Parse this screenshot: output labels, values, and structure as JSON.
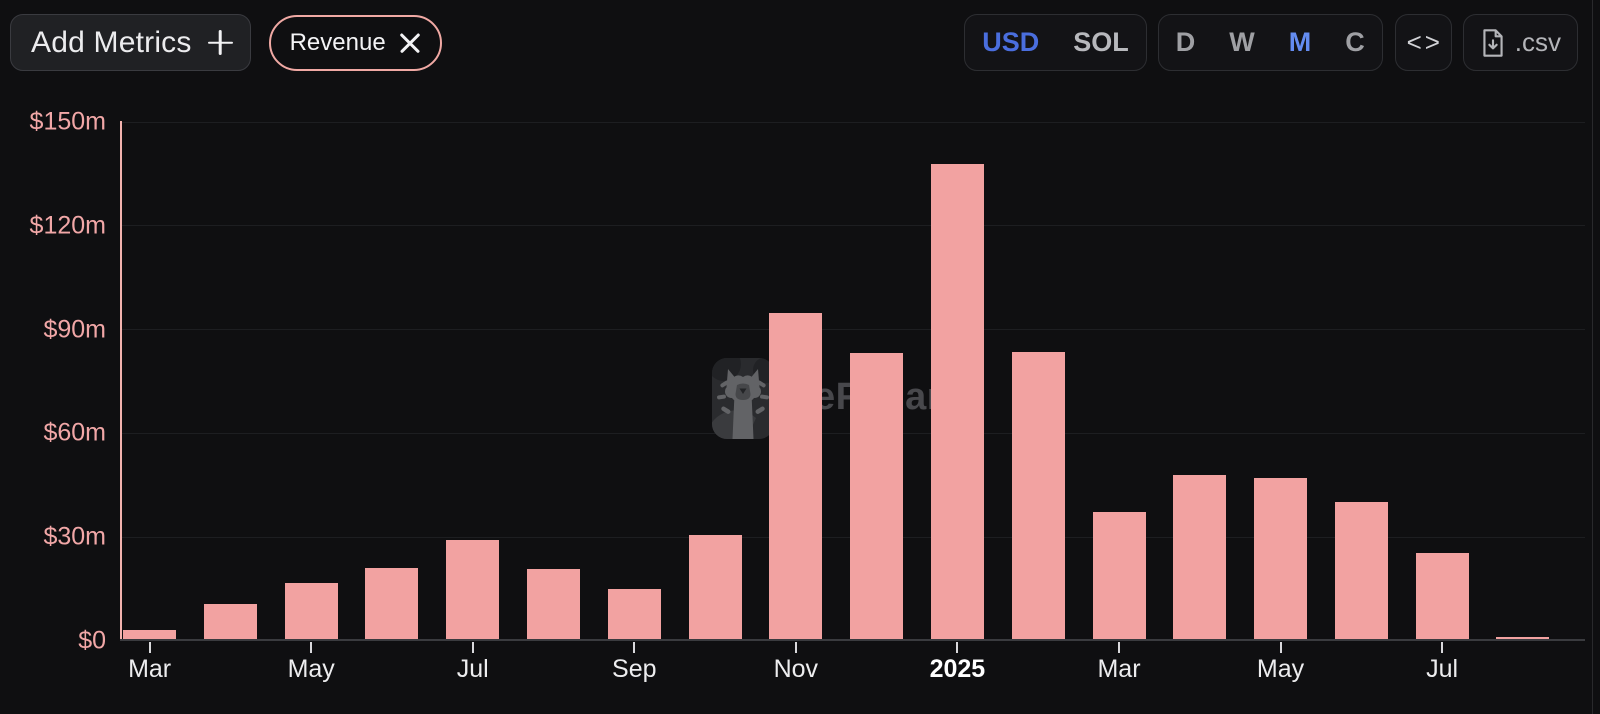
{
  "toolbar": {
    "add_metrics": {
      "label": "Add Metrics",
      "icon": "plus-icon"
    },
    "metric_pill": {
      "label": "Revenue",
      "icon": "close-icon",
      "border_color": "#f0a9a4"
    },
    "currency_toggle": {
      "options": [
        "USD",
        "SOL"
      ],
      "selected": "USD"
    },
    "interval_toggle": {
      "options": [
        "D",
        "W",
        "M",
        "C"
      ],
      "selected": "M"
    },
    "embed_button": {
      "icon": "code-icon",
      "glyph": "<>"
    },
    "csv_button": {
      "label": ".csv",
      "icon": "download-file-icon"
    }
  },
  "watermark": {
    "text": "DeFiLlama",
    "icon": "defillama-llama-logo"
  },
  "colors": {
    "background": "#101012",
    "bar": "#f2a2a1",
    "axis_label_pink": "#f1a7a7",
    "accent_blue_currency": "#4a6ede",
    "accent_blue_interval": "#648cf0"
  },
  "chart_data": {
    "type": "bar",
    "title": "Revenue",
    "xlabel": "",
    "ylabel": "USD (millions)",
    "unit": "$m",
    "ylim": [
      0,
      150
    ],
    "grid": true,
    "legend_position": "none",
    "x": [
      "Mar 2024",
      "Apr 2024",
      "May 2024",
      "Jun 2024",
      "Jul 2024",
      "Aug 2024",
      "Sep 2024",
      "Oct 2024",
      "Nov 2024",
      "Dec 2024",
      "Jan 2025",
      "Feb 2025",
      "Mar 2025",
      "Apr 2025",
      "May 2025",
      "Jun 2025",
      "Jul 2025",
      "Aug 2025"
    ],
    "values": [
      3,
      10.4,
      16.5,
      20.8,
      28.9,
      20.5,
      14.7,
      30.4,
      94.5,
      83,
      137.5,
      83.3,
      37,
      47.7,
      46.8,
      39.9,
      25.2,
      0.9
    ],
    "yticks": {
      "values": [
        0,
        30,
        60,
        90,
        120,
        150
      ],
      "labels": [
        "$0",
        "$30m",
        "$60m",
        "$90m",
        "$120m",
        "$150m"
      ]
    },
    "xticks": [
      {
        "index": 0,
        "label": "Mar",
        "bold": false
      },
      {
        "index": 2,
        "label": "May",
        "bold": false
      },
      {
        "index": 4,
        "label": "Jul",
        "bold": false
      },
      {
        "index": 6,
        "label": "Sep",
        "bold": false
      },
      {
        "index": 8,
        "label": "Nov",
        "bold": false
      },
      {
        "index": 10,
        "label": "2025",
        "bold": true
      },
      {
        "index": 12,
        "label": "Mar",
        "bold": false
      },
      {
        "index": 14,
        "label": "May",
        "bold": false
      },
      {
        "index": 16,
        "label": "Jul",
        "bold": false
      }
    ]
  }
}
